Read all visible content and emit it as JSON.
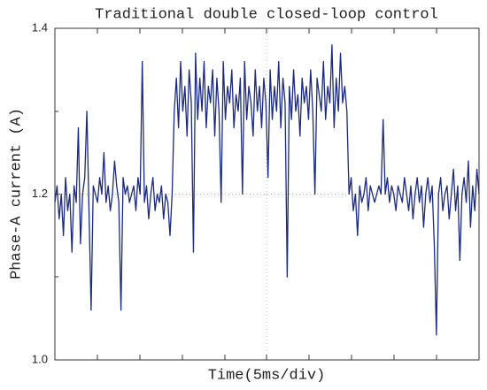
{
  "chart_data": {
    "type": "line",
    "title": "Traditional double closed-loop control",
    "xlabel": "Time(5ms/div)",
    "ylabel": "Phase-A current (A)",
    "ylim": [
      1.0,
      1.4
    ],
    "yticks": [
      {
        "value": 1.0,
        "label": "1.0"
      },
      {
        "value": 1.2,
        "label": "1.2"
      },
      {
        "value": 1.4,
        "label": "1.4"
      }
    ],
    "grid": true,
    "series": [
      {
        "name": "Phase-A current",
        "color": "#1a2a80",
        "values": [
          1.19,
          1.21,
          1.17,
          1.2,
          1.15,
          1.22,
          1.18,
          1.2,
          1.13,
          1.21,
          1.19,
          1.28,
          1.14,
          1.2,
          1.22,
          1.3,
          1.18,
          1.06,
          1.21,
          1.2,
          1.19,
          1.22,
          1.2,
          1.25,
          1.19,
          1.21,
          1.18,
          1.2,
          1.24,
          1.21,
          1.19,
          1.06,
          1.22,
          1.2,
          1.21,
          1.19,
          1.2,
          1.21,
          1.18,
          1.22,
          1.2,
          1.36,
          1.19,
          1.21,
          1.17,
          1.2,
          1.22,
          1.18,
          1.2,
          1.19,
          1.21,
          1.17,
          1.2,
          1.19,
          1.15,
          1.2,
          1.3,
          1.34,
          1.28,
          1.36,
          1.3,
          1.33,
          1.27,
          1.35,
          1.31,
          1.13,
          1.37,
          1.29,
          1.34,
          1.3,
          1.36,
          1.28,
          1.33,
          1.31,
          1.35,
          1.27,
          1.34,
          1.3,
          1.19,
          1.36,
          1.29,
          1.33,
          1.31,
          1.35,
          1.28,
          1.32,
          1.3,
          1.34,
          1.2,
          1.36,
          1.29,
          1.33,
          1.31,
          1.27,
          1.35,
          1.3,
          1.33,
          1.28,
          1.34,
          1.31,
          1.22,
          1.35,
          1.29,
          1.33,
          1.3,
          1.36,
          1.28,
          1.34,
          1.31,
          1.1,
          1.33,
          1.29,
          1.35,
          1.3,
          1.32,
          1.27,
          1.34,
          1.31,
          1.33,
          1.29,
          1.35,
          1.3,
          1.2,
          1.34,
          1.32,
          1.3,
          1.36,
          1.29,
          1.33,
          1.31,
          1.38,
          1.28,
          1.34,
          1.3,
          1.37,
          1.31,
          1.33,
          1.3,
          1.2,
          1.22,
          1.18,
          1.2,
          1.15,
          1.21,
          1.19,
          1.2,
          1.22,
          1.18,
          1.21,
          1.2,
          1.19,
          1.2,
          1.21,
          1.2,
          1.29,
          1.2,
          1.22,
          1.19,
          1.21,
          1.2,
          1.18,
          1.21,
          1.2,
          1.19,
          1.22,
          1.2,
          1.18,
          1.21,
          1.17,
          1.2,
          1.22,
          1.19,
          1.21,
          1.16,
          1.2,
          1.22,
          1.19,
          1.21,
          1.14,
          1.03,
          1.2,
          1.22,
          1.18,
          1.2,
          1.21,
          1.17,
          1.2,
          1.23,
          1.18,
          1.21,
          1.12,
          1.2,
          1.22,
          1.19,
          1.24,
          1.16,
          1.21,
          1.18,
          1.23,
          1.2
        ]
      }
    ]
  }
}
